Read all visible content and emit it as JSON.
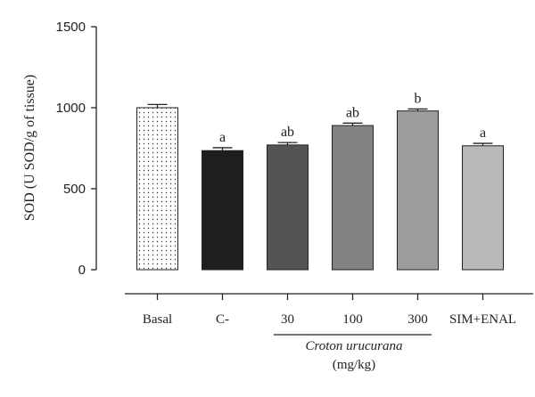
{
  "chart_data": {
    "type": "bar",
    "ylabel": "SOD (U SOD/g of tissue)",
    "ylim": [
      0,
      1500
    ],
    "yticks": [
      "0",
      "500",
      "1000",
      "1500"
    ],
    "categories": [
      "Basal",
      "C-",
      "30",
      "100",
      "300",
      "SIM+ENAL"
    ],
    "values": [
      1000,
      735,
      770,
      890,
      980,
      765
    ],
    "errors": [
      20,
      18,
      15,
      15,
      12,
      15
    ],
    "significance": [
      "",
      "a",
      "ab",
      "ab",
      "b",
      "a"
    ],
    "fills": [
      "pattern-dots",
      "#1e1e1e",
      "#545454",
      "#838383",
      "#9c9c9c",
      "#b8b8b8"
    ],
    "group": {
      "label": "Croton urucurana",
      "units": "(mg/kg)",
      "members": [
        "30",
        "100",
        "300"
      ]
    },
    "grid": false,
    "legend": "none"
  }
}
